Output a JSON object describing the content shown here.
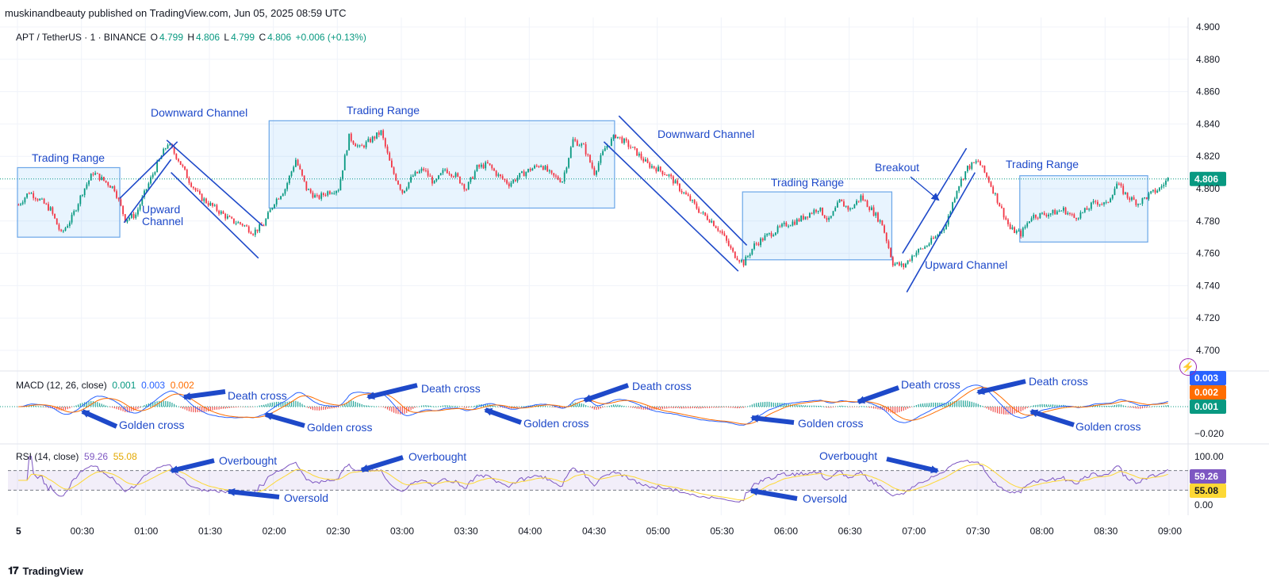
{
  "header": {
    "published": "muskinandbeauty published on TradingView.com, Jun 05, 2025 08:59 UTC"
  },
  "legend": {
    "symbol": "APT / TetherUS · 1 · BINANCE",
    "o_label": "O",
    "o": "4.799",
    "h_label": "H",
    "h": "4.806",
    "l_label": "L",
    "l": "4.799",
    "c_label": "C",
    "c": "4.806",
    "change": "+0.006 (+0.13%)"
  },
  "macd": {
    "label": "MACD (12, 26, close)",
    "v1": "0.001",
    "v2": "0.003",
    "v3": "0.002"
  },
  "rsi": {
    "label": "RSI (14, close)",
    "v1": "59.26",
    "v2": "55.08"
  },
  "branding": {
    "logo": "TradingView"
  },
  "colors": {
    "up": "#089981",
    "down": "#f23645",
    "accent": "#2962ff",
    "annot": "#1e49c9",
    "macd": "#2962ff",
    "signal": "#ff6d00",
    "rsi": "#7e57c2",
    "rsi_ma": "#fdd835"
  },
  "chart_data": {
    "type": "candlestick",
    "price_axis": {
      "ticks": [
        "4.900",
        "4.880",
        "4.860",
        "4.840",
        "4.820",
        "4.806",
        "4.800",
        "4.780",
        "4.760",
        "4.740",
        "4.720",
        "4.700"
      ],
      "ylim": [
        4.7,
        4.9
      ]
    },
    "macd_axis": {
      "ticks": [
        "0.003",
        "0.002",
        "0.001",
        "−0.020"
      ]
    },
    "rsi_axis": {
      "ticks": [
        "100.00",
        "59.26",
        "55.08",
        "0.00"
      ],
      "bands": [
        70,
        30
      ]
    },
    "time_axis": [
      "5",
      "00:30",
      "01:00",
      "01:30",
      "02:00",
      "02:30",
      "03:00",
      "03:30",
      "04:00",
      "04:30",
      "05:00",
      "05:30",
      "06:00",
      "06:30",
      "07:00",
      "07:30",
      "08:00",
      "08:30",
      "09:00"
    ],
    "last_price": "4.806",
    "price_path": [
      [
        "00:00",
        4.79
      ],
      [
        "00:05",
        4.798
      ],
      [
        "00:10",
        4.793
      ],
      [
        "00:15",
        4.787
      ],
      [
        "00:20",
        4.772
      ],
      [
        "00:25",
        4.782
      ],
      [
        "00:30",
        4.798
      ],
      [
        "00:35",
        4.81
      ],
      [
        "00:40",
        4.805
      ],
      [
        "00:45",
        4.8
      ],
      [
        "00:50",
        4.781
      ],
      [
        "00:55",
        4.784
      ],
      [
        "01:00",
        4.8
      ],
      [
        "01:05",
        4.815
      ],
      [
        "01:10",
        4.828
      ],
      [
        "01:15",
        4.818
      ],
      [
        "01:20",
        4.805
      ],
      [
        "01:25",
        4.795
      ],
      [
        "01:30",
        4.79
      ],
      [
        "01:35",
        4.785
      ],
      [
        "01:40",
        4.78
      ],
      [
        "01:45",
        4.778
      ],
      [
        "01:50",
        4.773
      ],
      [
        "01:55",
        4.778
      ],
      [
        "02:00",
        4.792
      ],
      [
        "02:05",
        4.8
      ],
      [
        "02:10",
        4.818
      ],
      [
        "02:15",
        4.8
      ],
      [
        "02:20",
        4.794
      ],
      [
        "02:25",
        4.798
      ],
      [
        "02:30",
        4.8
      ],
      [
        "02:35",
        4.832
      ],
      [
        "02:40",
        4.825
      ],
      [
        "02:45",
        4.83
      ],
      [
        "02:50",
        4.835
      ],
      [
        "02:55",
        4.812
      ],
      [
        "03:00",
        4.798
      ],
      [
        "03:05",
        4.808
      ],
      [
        "03:10",
        4.812
      ],
      [
        "03:15",
        4.803
      ],
      [
        "03:20",
        4.812
      ],
      [
        "03:25",
        4.808
      ],
      [
        "03:30",
        4.8
      ],
      [
        "03:35",
        4.813
      ],
      [
        "03:40",
        4.815
      ],
      [
        "03:45",
        4.808
      ],
      [
        "03:50",
        4.803
      ],
      [
        "03:55",
        4.808
      ],
      [
        "04:00",
        4.812
      ],
      [
        "04:05",
        4.815
      ],
      [
        "04:10",
        4.808
      ],
      [
        "04:15",
        4.805
      ],
      [
        "04:20",
        4.83
      ],
      [
        "04:25",
        4.826
      ],
      [
        "04:30",
        4.81
      ],
      [
        "04:35",
        4.825
      ],
      [
        "04:40",
        4.833
      ],
      [
        "04:45",
        4.828
      ],
      [
        "04:50",
        4.822
      ],
      [
        "04:55",
        4.815
      ],
      [
        "05:00",
        4.812
      ],
      [
        "05:05",
        4.808
      ],
      [
        "05:10",
        4.8
      ],
      [
        "05:15",
        4.793
      ],
      [
        "05:20",
        4.785
      ],
      [
        "05:25",
        4.78
      ],
      [
        "05:30",
        4.772
      ],
      [
        "05:35",
        4.76
      ],
      [
        "05:40",
        4.754
      ],
      [
        "05:45",
        4.765
      ],
      [
        "05:50",
        4.77
      ],
      [
        "05:55",
        4.774
      ],
      [
        "06:00",
        4.778
      ],
      [
        "06:05",
        4.78
      ],
      [
        "06:10",
        4.784
      ],
      [
        "06:15",
        4.788
      ],
      [
        "06:20",
        4.78
      ],
      [
        "06:25",
        4.792
      ],
      [
        "06:30",
        4.787
      ],
      [
        "06:35",
        4.795
      ],
      [
        "06:40",
        4.787
      ],
      [
        "06:45",
        4.778
      ],
      [
        "06:50",
        4.754
      ],
      [
        "06:55",
        4.752
      ],
      [
        "07:00",
        4.76
      ],
      [
        "07:05",
        4.764
      ],
      [
        "07:10",
        4.77
      ],
      [
        "07:15",
        4.778
      ],
      [
        "07:20",
        4.8
      ],
      [
        "07:25",
        4.813
      ],
      [
        "07:30",
        4.817
      ],
      [
        "07:35",
        4.805
      ],
      [
        "07:40",
        4.79
      ],
      [
        "07:45",
        4.775
      ],
      [
        "07:50",
        4.772
      ],
      [
        "07:55",
        4.783
      ],
      [
        "08:00",
        4.784
      ],
      [
        "08:05",
        4.785
      ],
      [
        "08:10",
        4.787
      ],
      [
        "08:15",
        4.782
      ],
      [
        "08:20",
        4.786
      ],
      [
        "08:25",
        4.792
      ],
      [
        "08:30",
        4.79
      ],
      [
        "08:35",
        4.803
      ],
      [
        "08:40",
        4.795
      ],
      [
        "08:45",
        4.791
      ],
      [
        "08:50",
        4.796
      ],
      [
        "08:55",
        4.8
      ],
      [
        "08:59",
        4.806
      ]
    ],
    "annotations": {
      "boxes": [
        "Trading Range",
        "Trading Range",
        "Trading Range",
        "Trading Range"
      ],
      "texts": [
        "Trading Range",
        "Downward Channel",
        "Upward",
        "Channel",
        "Trading Range",
        "Downward Channel",
        "Trading Range",
        "Breakout",
        "Trading Range",
        "Upward Channel"
      ],
      "macd_texts": [
        "Death cross",
        "Golden cross",
        "Golden cross",
        "Death cross",
        "Golden cross",
        "Death cross",
        "Golden cross",
        "Death cross",
        "Death cross",
        "Golden cross"
      ],
      "rsi_texts": [
        "Overbought",
        "Oversold",
        "Overbought",
        "Overbought",
        "Oversold"
      ]
    }
  }
}
